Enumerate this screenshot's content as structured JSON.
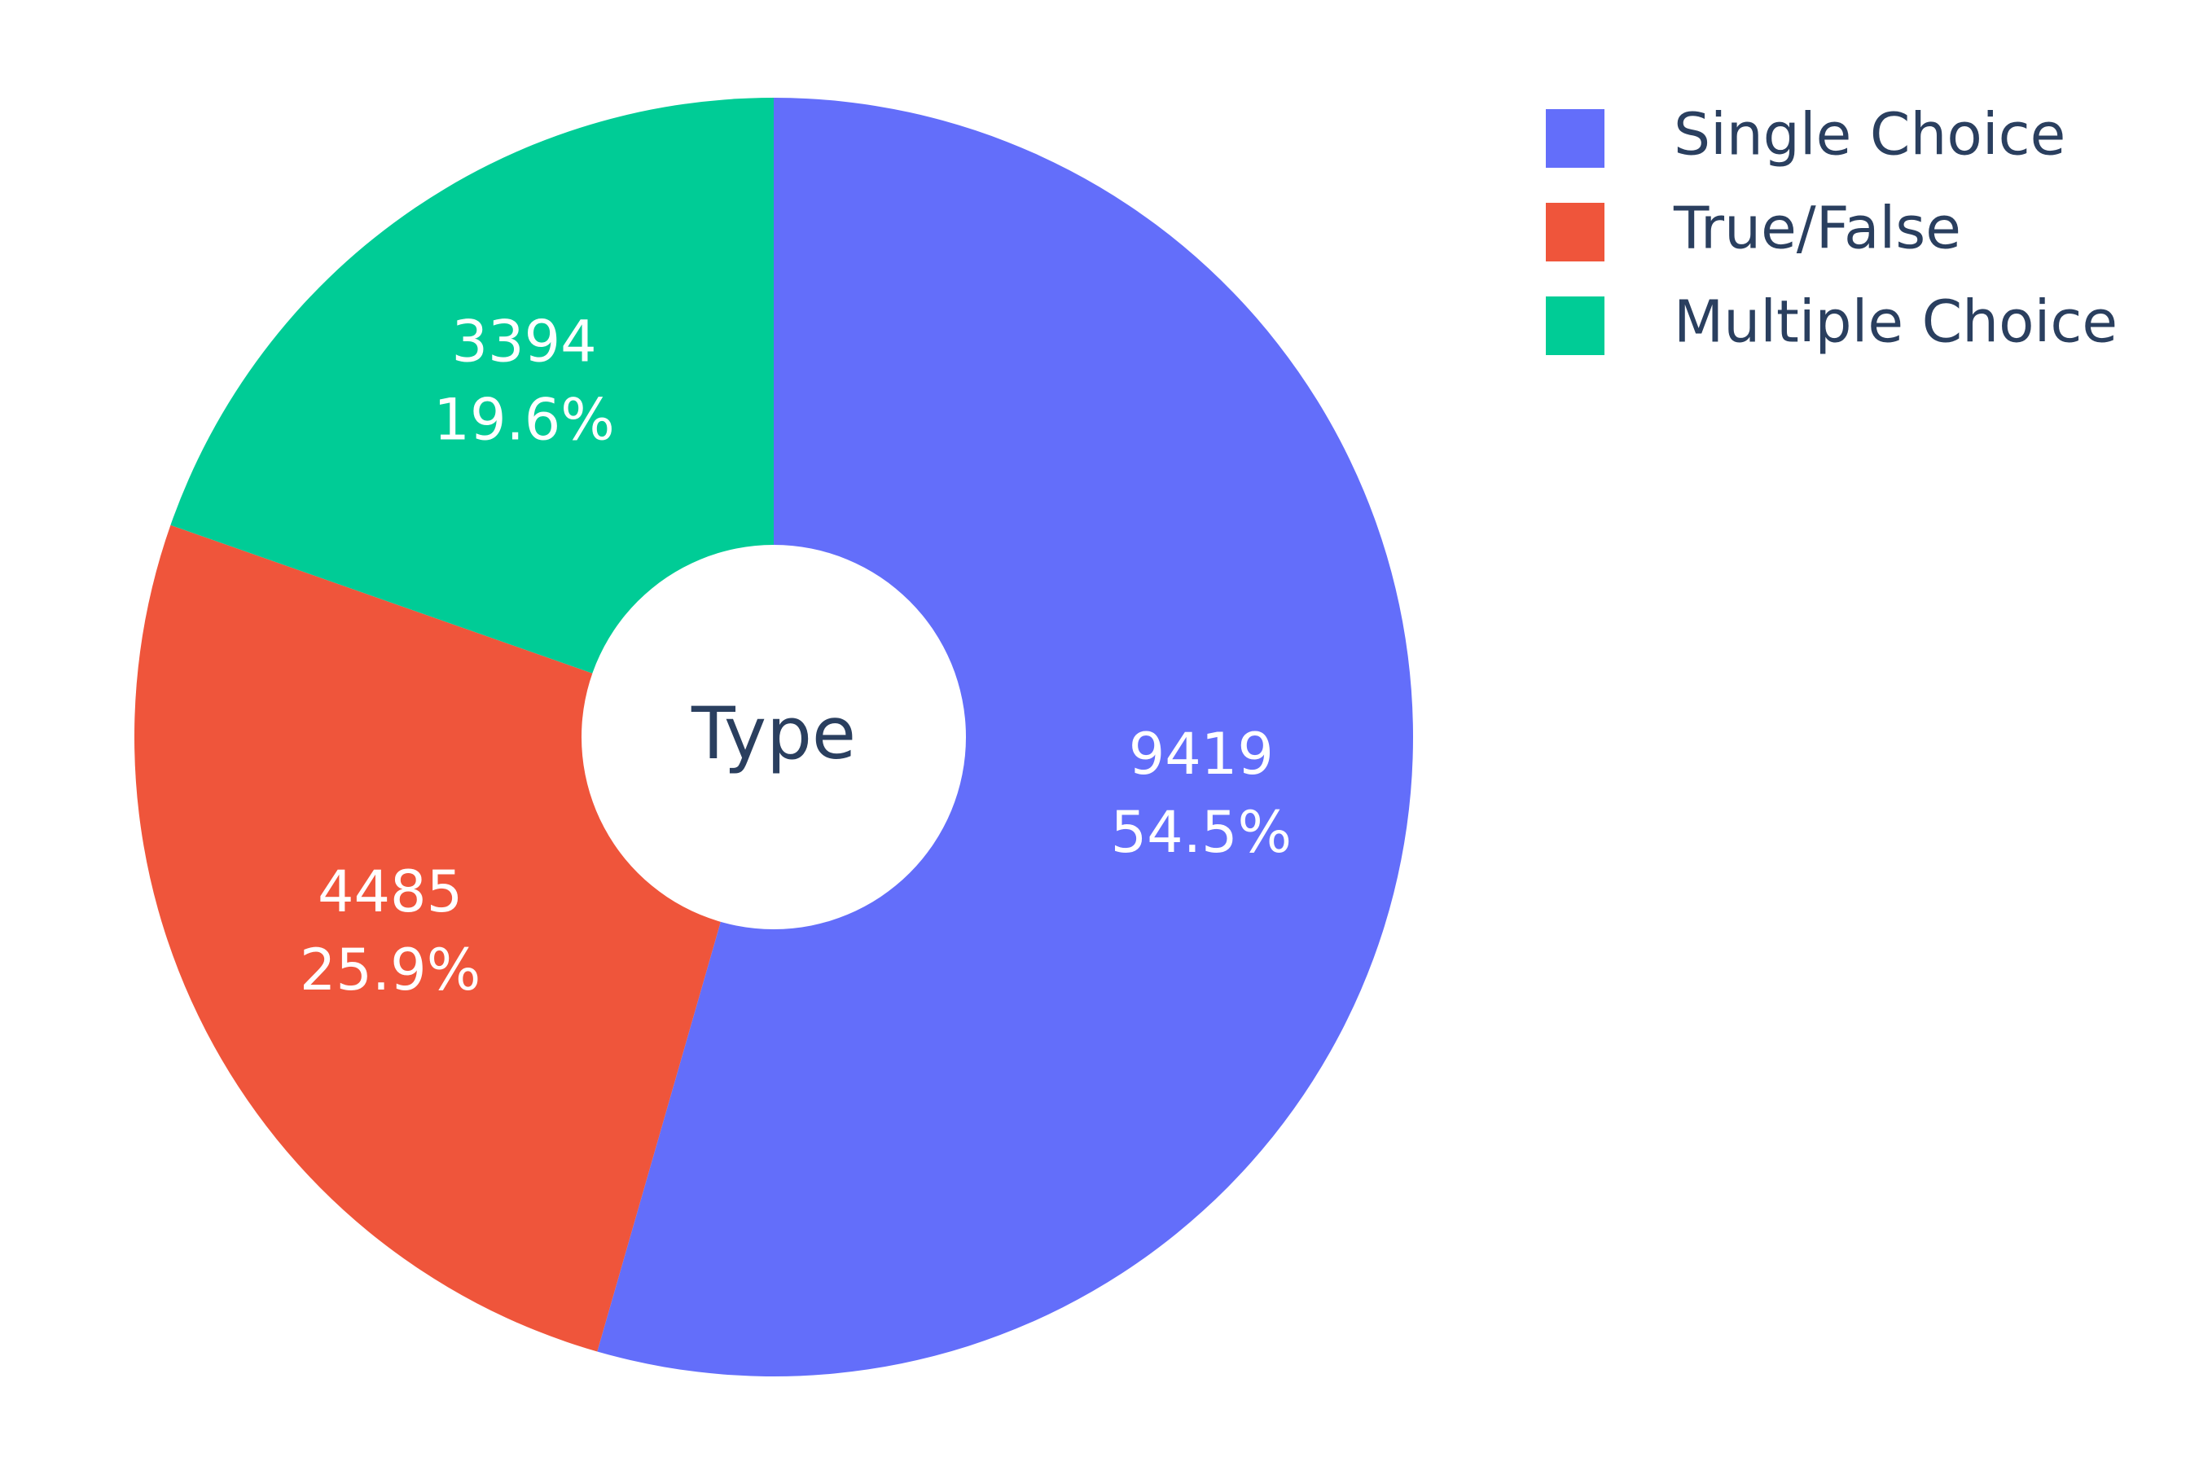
{
  "chart_data": {
    "type": "pie",
    "hole": true,
    "center_text": "Type",
    "legend_position": "top-right",
    "slices": [
      {
        "label": "Single Choice",
        "value": 9419,
        "percent": "54.5%",
        "color": "#636efa"
      },
      {
        "label": "True/False",
        "value": 4485,
        "percent": "25.9%",
        "color": "#ef553b"
      },
      {
        "label": "Multiple Choice",
        "value": 3394,
        "percent": "19.6%",
        "color": "#00cc96"
      }
    ]
  }
}
